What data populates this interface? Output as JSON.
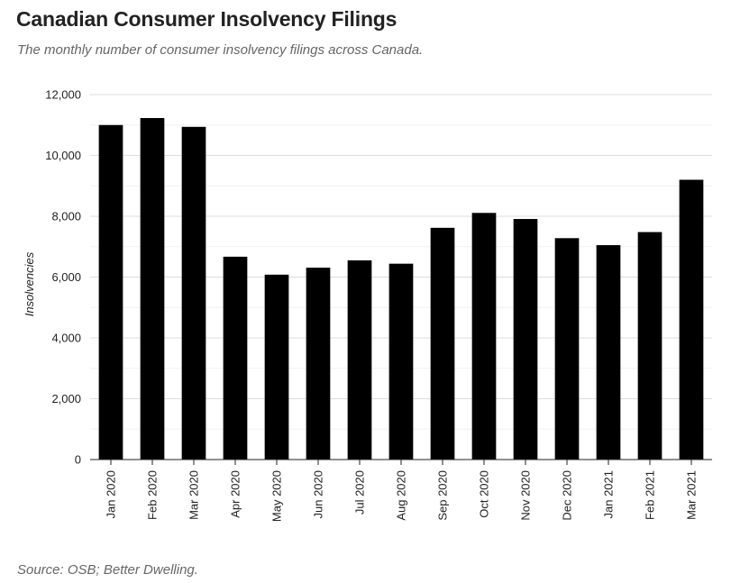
{
  "header": {
    "title": "Canadian Consumer Insolvency Filings",
    "subtitle": "The monthly number of consumer insolvency filings across Canada."
  },
  "footer": {
    "source": "Source: OSB; Better Dwelling."
  },
  "colors": {
    "bar": "#000000",
    "gridline": "#dddddd",
    "axis": "#222222"
  },
  "chart_data": {
    "type": "bar",
    "title": "Canadian Consumer Insolvency Filings",
    "subtitle": "The monthly number of consumer insolvency filings across Canada.",
    "xlabel": "",
    "ylabel": "Insolvencies",
    "ylim": [
      0,
      12000
    ],
    "yticks": [
      0,
      2000,
      4000,
      6000,
      8000,
      10000,
      12000
    ],
    "ytick_labels": [
      "0",
      "2,000",
      "4,000",
      "6,000",
      "8,000",
      "10,000",
      "12,000"
    ],
    "grid": true,
    "legend": "none",
    "categories": [
      "Jan 2020",
      "Feb 2020",
      "Mar 2020",
      "Apr 2020",
      "May 2020",
      "Jun 2020",
      "Jul 2020",
      "Aug 2020",
      "Sep 2020",
      "Oct 2020",
      "Nov 2020",
      "Dec 2020",
      "Jan 2021",
      "Feb 2021",
      "Mar 2021"
    ],
    "values": [
      11000,
      11230,
      10940,
      6670,
      6080,
      6310,
      6550,
      6440,
      7620,
      8110,
      7910,
      7280,
      7050,
      7480,
      9200
    ]
  }
}
